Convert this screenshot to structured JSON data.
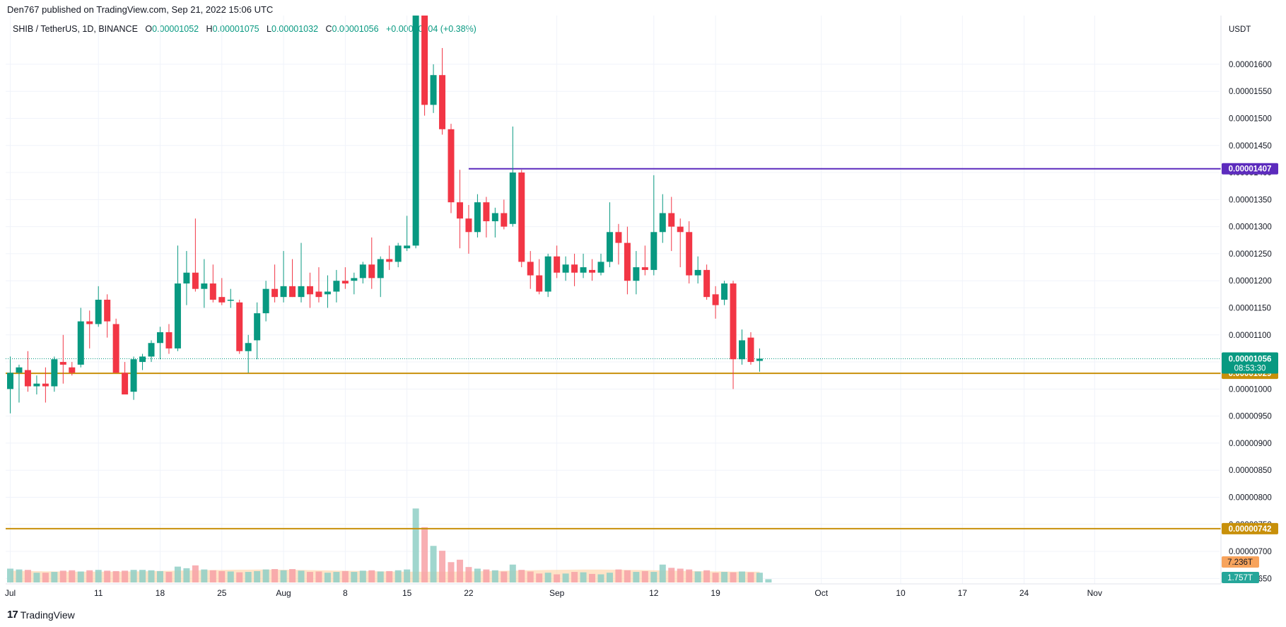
{
  "publisher_line": "Den767 published on TradingView.com, Sep 21, 2022 15:06 UTC",
  "legend": {
    "symbol": "SHIB / TetherUS, 1D, BINANCE",
    "o_label": "O",
    "o_value": "0.00001052",
    "h_label": "H",
    "h_value": "0.00001075",
    "l_label": "L",
    "l_value": "0.00001032",
    "c_label": "C",
    "c_value": "0.00001056",
    "change": "+0.00000004 (+0.38%)"
  },
  "footer": {
    "logo": "17",
    "brand": "TradingView"
  },
  "colors": {
    "up": "#089981",
    "down": "#f23645",
    "vol_up": "#8fcfc5",
    "vol_down": "#f7a1a6",
    "purple": "#5c2bbd",
    "orange": "#c8900a",
    "grid": "#f0f3fa"
  },
  "chart_data": {
    "type": "candlestick",
    "title": "SHIB / TetherUS, 1D, BINANCE",
    "currency_label": "USDT",
    "ylim": [
      6.4e-06,
      1.69e-05
    ],
    "y_ticks": [
      "0.00000650",
      "0.00000700",
      "0.00000750",
      "0.00000800",
      "0.00000850",
      "0.00000900",
      "0.00000950",
      "0.00001000",
      "0.00001050",
      "0.00001100",
      "0.00001150",
      "0.00001200",
      "0.00001250",
      "0.00001300",
      "0.00001350",
      "0.00001400",
      "0.00001450",
      "0.00001500",
      "0.00001550",
      "0.00001600"
    ],
    "x_tick_labels": [
      {
        "label": "Jul",
        "day": 0
      },
      {
        "label": "11",
        "day": 10
      },
      {
        "label": "18",
        "day": 17
      },
      {
        "label": "25",
        "day": 24
      },
      {
        "label": "Aug",
        "day": 31
      },
      {
        "label": "8",
        "day": 38
      },
      {
        "label": "15",
        "day": 45
      },
      {
        "label": "22",
        "day": 52
      },
      {
        "label": "Sep",
        "day": 62
      },
      {
        "label": "12",
        "day": 73
      },
      {
        "label": "19",
        "day": 80
      },
      {
        "label": "Oct",
        "day": 92
      },
      {
        "label": "10",
        "day": 101
      },
      {
        "label": "17",
        "day": 108
      },
      {
        "label": "24",
        "day": 115
      },
      {
        "label": "Nov",
        "day": 123
      }
    ],
    "candles": [
      {
        "o": 1e-05,
        "h": 1.06e-05,
        "l": 9.55e-06,
        "c": 1.03e-05
      },
      {
        "o": 1.03e-05,
        "h": 1.045e-05,
        "l": 9.75e-06,
        "c": 1.04e-05
      },
      {
        "o": 1.035e-05,
        "h": 1.07e-05,
        "l": 9.95e-06,
        "c": 1.005e-05
      },
      {
        "o": 1.005e-05,
        "h": 1.025e-05,
        "l": 9.9e-06,
        "c": 1.01e-05
      },
      {
        "o": 1.01e-05,
        "h": 1.04e-05,
        "l": 9.75e-06,
        "c": 1.005e-05
      },
      {
        "o": 1.005e-05,
        "h": 1.06e-05,
        "l": 9.95e-06,
        "c": 1.055e-05
      },
      {
        "o": 1.05e-05,
        "h": 1.1e-05,
        "l": 1.01e-05,
        "c": 1.045e-05
      },
      {
        "o": 1.04e-05,
        "h": 1.05e-05,
        "l": 1.025e-05,
        "c": 1.03e-05
      },
      {
        "o": 1.045e-05,
        "h": 1.15e-05,
        "l": 1.04e-05,
        "c": 1.125e-05
      },
      {
        "o": 1.125e-05,
        "h": 1.145e-05,
        "l": 1.075e-05,
        "c": 1.12e-05
      },
      {
        "o": 1.12e-05,
        "h": 1.19e-05,
        "l": 1.115e-05,
        "c": 1.165e-05
      },
      {
        "o": 1.165e-05,
        "h": 1.175e-05,
        "l": 1.095e-05,
        "c": 1.125e-05
      },
      {
        "o": 1.12e-05,
        "h": 1.13e-05,
        "l": 1.03e-05,
        "c": 1.03e-05
      },
      {
        "o": 1.03e-05,
        "h": 1.05e-05,
        "l": 9.9e-06,
        "c": 9.9e-06
      },
      {
        "o": 9.95e-06,
        "h": 1.06e-05,
        "l": 9.8e-06,
        "c": 1.055e-05
      },
      {
        "o": 1.05e-05,
        "h": 1.065e-05,
        "l": 1.035e-05,
        "c": 1.06e-05
      },
      {
        "o": 1.06e-05,
        "h": 1.09e-05,
        "l": 1.05e-05,
        "c": 1.085e-05
      },
      {
        "o": 1.085e-05,
        "h": 1.115e-05,
        "l": 1.055e-05,
        "c": 1.105e-05
      },
      {
        "o": 1.105e-05,
        "h": 1.12e-05,
        "l": 1.065e-05,
        "c": 1.075e-05
      },
      {
        "o": 1.075e-05,
        "h": 1.265e-05,
        "l": 1.07e-05,
        "c": 1.195e-05
      },
      {
        "o": 1.195e-05,
        "h": 1.255e-05,
        "l": 1.155e-05,
        "c": 1.215e-05
      },
      {
        "o": 1.215e-05,
        "h": 1.315e-05,
        "l": 1.18e-05,
        "c": 1.185e-05
      },
      {
        "o": 1.185e-05,
        "h": 1.24e-05,
        "l": 1.15e-05,
        "c": 1.195e-05
      },
      {
        "o": 1.195e-05,
        "h": 1.23e-05,
        "l": 1.16e-05,
        "c": 1.165e-05
      },
      {
        "o": 1.17e-05,
        "h": 1.205e-05,
        "l": 1.155e-05,
        "c": 1.16e-05
      },
      {
        "o": 1.165e-05,
        "h": 1.185e-05,
        "l": 1.15e-05,
        "c": 1.165e-05
      },
      {
        "o": 1.16e-05,
        "h": 1.165e-05,
        "l": 1.065e-05,
        "c": 1.07e-05
      },
      {
        "o": 1.07e-05,
        "h": 1.1e-05,
        "l": 1.03e-05,
        "c": 1.085e-05
      },
      {
        "o": 1.09e-05,
        "h": 1.16e-05,
        "l": 1.055e-05,
        "c": 1.14e-05
      },
      {
        "o": 1.14e-05,
        "h": 1.2e-05,
        "l": 1.125e-05,
        "c": 1.185e-05
      },
      {
        "o": 1.185e-05,
        "h": 1.23e-05,
        "l": 1.16e-05,
        "c": 1.17e-05
      },
      {
        "o": 1.17e-05,
        "h": 1.255e-05,
        "l": 1.16e-05,
        "c": 1.19e-05
      },
      {
        "o": 1.19e-05,
        "h": 1.24e-05,
        "l": 1.17e-05,
        "c": 1.17e-05
      },
      {
        "o": 1.17e-05,
        "h": 1.27e-05,
        "l": 1.16e-05,
        "c": 1.19e-05
      },
      {
        "o": 1.19e-05,
        "h": 1.215e-05,
        "l": 1.15e-05,
        "c": 1.175e-05
      },
      {
        "o": 1.18e-05,
        "h": 1.225e-05,
        "l": 1.16e-05,
        "c": 1.17e-05
      },
      {
        "o": 1.175e-05,
        "h": 1.21e-05,
        "l": 1.15e-05,
        "c": 1.18e-05
      },
      {
        "o": 1.18e-05,
        "h": 1.22e-05,
        "l": 1.16e-05,
        "c": 1.2e-05
      },
      {
        "o": 1.2e-05,
        "h": 1.225e-05,
        "l": 1.185e-05,
        "c": 1.195e-05
      },
      {
        "o": 1.2e-05,
        "h": 1.215e-05,
        "l": 1.175e-05,
        "c": 1.205e-05
      },
      {
        "o": 1.205e-05,
        "h": 1.235e-05,
        "l": 1.195e-05,
        "c": 1.23e-05
      },
      {
        "o": 1.23e-05,
        "h": 1.28e-05,
        "l": 1.185e-05,
        "c": 1.205e-05
      },
      {
        "o": 1.205e-05,
        "h": 1.245e-05,
        "l": 1.17e-05,
        "c": 1.24e-05
      },
      {
        "o": 1.24e-05,
        "h": 1.265e-05,
        "l": 1.22e-05,
        "c": 1.235e-05
      },
      {
        "o": 1.235e-05,
        "h": 1.27e-05,
        "l": 1.225e-05,
        "c": 1.265e-05
      },
      {
        "o": 1.26e-05,
        "h": 1.32e-05,
        "l": 1.255e-05,
        "c": 1.265e-05
      },
      {
        "o": 1.265e-05,
        "h": 1.69e-05,
        "l": 1.26e-05,
        "c": 1.695e-05
      },
      {
        "o": 1.695e-05,
        "h": 1.75e-05,
        "l": 1.505e-05,
        "c": 1.525e-05
      },
      {
        "o": 1.525e-05,
        "h": 1.6e-05,
        "l": 1.51e-05,
        "c": 1.58e-05
      },
      {
        "o": 1.58e-05,
        "h": 1.63e-05,
        "l": 1.47e-05,
        "c": 1.48e-05
      },
      {
        "o": 1.48e-05,
        "h": 1.49e-05,
        "l": 1.325e-05,
        "c": 1.345e-05
      },
      {
        "o": 1.345e-05,
        "h": 1.405e-05,
        "l": 1.26e-05,
        "c": 1.315e-05
      },
      {
        "o": 1.315e-05,
        "h": 1.34e-05,
        "l": 1.25e-05,
        "c": 1.29e-05
      },
      {
        "o": 1.29e-05,
        "h": 1.36e-05,
        "l": 1.28e-05,
        "c": 1.345e-05
      },
      {
        "o": 1.345e-05,
        "h": 1.355e-05,
        "l": 1.28e-05,
        "c": 1.31e-05
      },
      {
        "o": 1.31e-05,
        "h": 1.335e-05,
        "l": 1.28e-05,
        "c": 1.325e-05
      },
      {
        "o": 1.325e-05,
        "h": 1.35e-05,
        "l": 1.295e-05,
        "c": 1.3e-05
      },
      {
        "o": 1.305e-05,
        "h": 1.485e-05,
        "l": 1.3e-05,
        "c": 1.4e-05
      },
      {
        "o": 1.4e-05,
        "h": 1.405e-05,
        "l": 1.225e-05,
        "c": 1.235e-05
      },
      {
        "o": 1.235e-05,
        "h": 1.255e-05,
        "l": 1.185e-05,
        "c": 1.21e-05
      },
      {
        "o": 1.21e-05,
        "h": 1.24e-05,
        "l": 1.175e-05,
        "c": 1.18e-05
      },
      {
        "o": 1.18e-05,
        "h": 1.25e-05,
        "l": 1.17e-05,
        "c": 1.245e-05
      },
      {
        "o": 1.245e-05,
        "h": 1.265e-05,
        "l": 1.205e-05,
        "c": 1.215e-05
      },
      {
        "o": 1.215e-05,
        "h": 1.245e-05,
        "l": 1.2e-05,
        "c": 1.23e-05
      },
      {
        "o": 1.23e-05,
        "h": 1.25e-05,
        "l": 1.19e-05,
        "c": 1.215e-05
      },
      {
        "o": 1.215e-05,
        "h": 1.25e-05,
        "l": 1.205e-05,
        "c": 1.225e-05
      },
      {
        "o": 1.22e-05,
        "h": 1.24e-05,
        "l": 1.2e-05,
        "c": 1.215e-05
      },
      {
        "o": 1.215e-05,
        "h": 1.25e-05,
        "l": 1.21e-05,
        "c": 1.235e-05
      },
      {
        "o": 1.235e-05,
        "h": 1.345e-05,
        "l": 1.225e-05,
        "c": 1.29e-05
      },
      {
        "o": 1.29e-05,
        "h": 1.305e-05,
        "l": 1.23e-05,
        "c": 1.27e-05
      },
      {
        "o": 1.27e-05,
        "h": 1.3e-05,
        "l": 1.175e-05,
        "c": 1.2e-05
      },
      {
        "o": 1.2e-05,
        "h": 1.255e-05,
        "l": 1.175e-05,
        "c": 1.225e-05
      },
      {
        "o": 1.225e-05,
        "h": 1.265e-05,
        "l": 1.21e-05,
        "c": 1.22e-05
      },
      {
        "o": 1.22e-05,
        "h": 1.395e-05,
        "l": 1.21e-05,
        "c": 1.29e-05
      },
      {
        "o": 1.29e-05,
        "h": 1.36e-05,
        "l": 1.27e-05,
        "c": 1.325e-05
      },
      {
        "o": 1.325e-05,
        "h": 1.355e-05,
        "l": 1.255e-05,
        "c": 1.3e-05
      },
      {
        "o": 1.3e-05,
        "h": 1.315e-05,
        "l": 1.225e-05,
        "c": 1.29e-05
      },
      {
        "o": 1.29e-05,
        "h": 1.31e-05,
        "l": 1.195e-05,
        "c": 1.21e-05
      },
      {
        "o": 1.21e-05,
        "h": 1.245e-05,
        "l": 1.195e-05,
        "c": 1.22e-05
      },
      {
        "o": 1.22e-05,
        "h": 1.23e-05,
        "l": 1.165e-05,
        "c": 1.17e-05
      },
      {
        "o": 1.175e-05,
        "h": 1.19e-05,
        "l": 1.13e-05,
        "c": 1.155e-05
      },
      {
        "o": 1.165e-05,
        "h": 1.2e-05,
        "l": 1.155e-05,
        "c": 1.195e-05
      },
      {
        "o": 1.195e-05,
        "h": 1.2e-05,
        "l": 1e-05,
        "c": 1.055e-05
      },
      {
        "o": 1.055e-05,
        "h": 1.11e-05,
        "l": 1.045e-05,
        "c": 1.09e-05
      },
      {
        "o": 1.095e-05,
        "h": 1.105e-05,
        "l": 1.045e-05,
        "c": 1.05e-05
      },
      {
        "o": 1.052e-05,
        "h": 1.075e-05,
        "l": 1.032e-05,
        "c": 1.056e-05
      }
    ],
    "volume": [
      1.7,
      1.6,
      1.55,
      1.2,
      1.2,
      1.3,
      1.45,
      1.5,
      1.35,
      1.5,
      1.55,
      1.45,
      1.4,
      1.45,
      1.55,
      1.55,
      1.5,
      1.4,
      1.3,
      1.95,
      1.75,
      2.1,
      1.6,
      1.5,
      1.4,
      1.35,
      1.25,
      1.3,
      1.4,
      1.6,
      1.65,
      1.5,
      1.65,
      1.45,
      1.3,
      1.35,
      1.2,
      1.3,
      1.4,
      1.3,
      1.45,
      1.5,
      1.35,
      1.4,
      1.5,
      1.6,
      9.1,
      6.8,
      4.5,
      3.9,
      2.5,
      2.8,
      1.9,
      1.7,
      1.6,
      1.5,
      1.35,
      2.2,
      1.55,
      1.35,
      1.1,
      1.2,
      1.0,
      1.1,
      1.3,
      1.25,
      1.05,
      1.0,
      1.2,
      1.6,
      1.5,
      1.3,
      1.4,
      1.3,
      2.2,
      1.8,
      1.7,
      1.6,
      1.35,
      1.5,
      1.2,
      1.3,
      1.25,
      1.35,
      1.25,
      1.2,
      0.4
    ],
    "volume_ma_label": "7.236T",
    "volume_last_label": "1.757T",
    "horizontal_lines": [
      {
        "value": 1.407e-05,
        "label": "0.00001407",
        "color": "#5c2bbd",
        "start_day": 52
      },
      {
        "value": 1.029e-05,
        "label": "0.00001029",
        "color": "#c8900a",
        "start_day": 0
      },
      {
        "value": 7.42e-06,
        "label": "0.00000742",
        "color": "#c8900a",
        "start_day": 0
      }
    ],
    "last_price": {
      "value": 1.056e-05,
      "label": "0.00001056",
      "countdown": "08:53:30"
    }
  }
}
